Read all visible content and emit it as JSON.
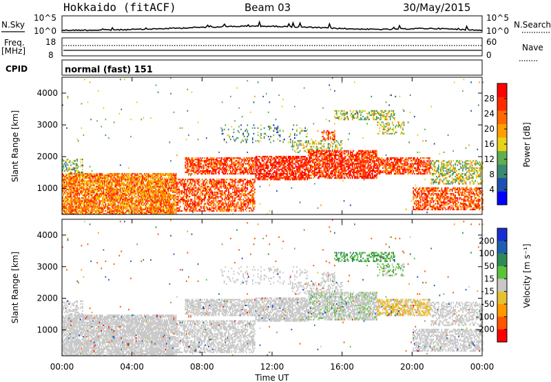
{
  "header": {
    "station": "Hokkaido (fitACF)",
    "beam": "Beam 03",
    "date": "30/May/2015"
  },
  "top_panels": {
    "nsky_label": "N.Sky",
    "nsearch_label": "N.Search",
    "noise_ticks_left": [
      "10^5",
      "10^0"
    ],
    "noise_ticks_right": [
      "10^5",
      "10^0"
    ],
    "freq_label_1": "Freq.",
    "freq_label_2": "[MHz]",
    "freq_ticks": [
      "18",
      "8"
    ],
    "nave_label": "Nave",
    "nave_ticks": [
      "60",
      "0"
    ],
    "cpid_label": "CPID",
    "cpid_value": "normal (fast) 151"
  },
  "colors": {
    "power_scale": [
      "#0000ff",
      "#1f4fb0",
      "#3a8a70",
      "#5fae4f",
      "#e8d21a",
      "#ffa000",
      "#ff6a00",
      "#ff2a00",
      "#ff0000"
    ],
    "velocity_scale": [
      "#1a2fd0",
      "#1f5fb0",
      "#2e8a55",
      "#5cc23a",
      "#c8c8c8",
      "#e6c030",
      "#ff9900",
      "#ff5500",
      "#ff0000"
    ]
  },
  "chart_data": [
    {
      "type": "heatmap",
      "panel": "power",
      "ylabel": "Slant Range [km]",
      "yticks": [
        "4000",
        "3000",
        "2000",
        "1000"
      ],
      "ylim": [
        180,
        4500
      ],
      "colorbar_label": "Power [dB]",
      "colorbar_ticks": [
        "28",
        "24",
        "20",
        "16",
        "12",
        "8",
        "4"
      ],
      "colorbar_range": [
        0,
        32
      ],
      "x_hours": [
        0,
        24
      ]
    },
    {
      "type": "heatmap",
      "panel": "velocity",
      "ylabel": "Slant Range [km]",
      "yticks": [
        "4000",
        "3000",
        "2000",
        "1000"
      ],
      "ylim": [
        180,
        4500
      ],
      "colorbar_label": "Velocity [m s⁻¹]",
      "colorbar_ticks": [
        "200",
        "100",
        "50",
        "15",
        "-15",
        "-50",
        "-100",
        "-200"
      ],
      "x_hours": [
        0,
        24
      ]
    }
  ],
  "xaxis": {
    "ticks": [
      "00:00",
      "04:00",
      "08:00",
      "12:00",
      "16:00",
      "20:00",
      "00:00"
    ],
    "label": "Time UT"
  }
}
